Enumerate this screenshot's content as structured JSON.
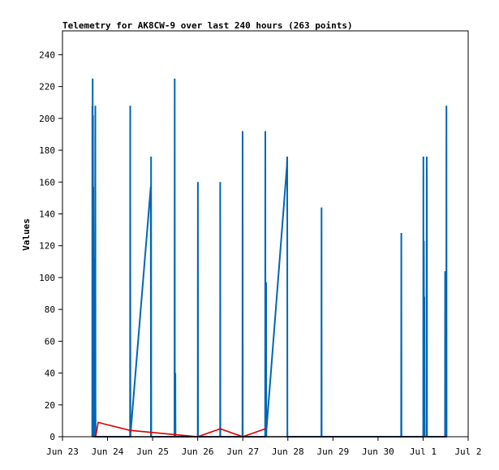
{
  "chart_data": {
    "type": "line",
    "title": "Telemetry for AK8CW-9 over last 240 hours (263 points)",
    "ylabel": "Values",
    "xlabel": "",
    "xlim": [
      "2025-06-23T00:00",
      "2025-07-02T00:00"
    ],
    "ylim": [
      0,
      255
    ],
    "yticks": [
      0,
      20,
      40,
      60,
      80,
      100,
      120,
      140,
      160,
      180,
      200,
      220,
      240
    ],
    "x_tick_labels": [
      "Jun 23",
      "Jun 24",
      "Jun 25",
      "Jun 26",
      "Jun 27",
      "Jun 28",
      "Jun 29",
      "Jun 30",
      "Jul 1",
      "Jul 2"
    ],
    "grid": false,
    "series": [
      {
        "color": "#0066b3",
        "points": [
          [
            "2025-06-23T15:50",
            0
          ],
          [
            "2025-06-23T15:55",
            208
          ],
          [
            "2025-06-23T16:00",
            0
          ],
          [
            "2025-06-23T16:05",
            225
          ],
          [
            "2025-06-23T16:10",
            0
          ],
          [
            "2025-06-23T16:15",
            202
          ],
          [
            "2025-06-23T16:20",
            0
          ],
          [
            "2025-06-23T16:25",
            157
          ],
          [
            "2025-06-23T16:30",
            0
          ],
          [
            "2025-06-23T16:50",
            112
          ],
          [
            "2025-06-23T16:55",
            0
          ],
          [
            "2025-06-23T17:05",
            68
          ],
          [
            "2025-06-23T17:10",
            0
          ],
          [
            "2025-06-23T17:30",
            208
          ],
          [
            "2025-06-23T17:35",
            22
          ],
          [
            "2025-06-23T17:40",
            0
          ],
          [
            "2025-06-24T12:00",
            0
          ],
          [
            "2025-06-24T12:05",
            208
          ],
          [
            "2025-06-24T12:10",
            0
          ],
          [
            "2025-06-24T12:15",
            2
          ],
          [
            "2025-06-24T23:00",
            157
          ],
          [
            "2025-06-24T23:05",
            0
          ],
          [
            "2025-06-24T23:10",
            176
          ],
          [
            "2025-06-24T23:15",
            0
          ],
          [
            "2025-06-25T11:40",
            0
          ],
          [
            "2025-06-25T11:45",
            225
          ],
          [
            "2025-06-25T11:50",
            0
          ],
          [
            "2025-06-25T12:05",
            40
          ],
          [
            "2025-06-25T12:10",
            0
          ],
          [
            "2025-06-26T00:00",
            0
          ],
          [
            "2025-06-26T00:05",
            160
          ],
          [
            "2025-06-26T00:10",
            0
          ],
          [
            "2025-06-26T11:55",
            0
          ],
          [
            "2025-06-26T12:00",
            160
          ],
          [
            "2025-06-26T12:05",
            0
          ],
          [
            "2025-06-26T23:50",
            0
          ],
          [
            "2025-06-26T23:55",
            192
          ],
          [
            "2025-06-27T00:00",
            0
          ],
          [
            "2025-06-27T11:55",
            0
          ],
          [
            "2025-06-27T12:00",
            192
          ],
          [
            "2025-06-27T12:05",
            0
          ],
          [
            "2025-06-27T12:25",
            97
          ],
          [
            "2025-06-27T12:30",
            0
          ],
          [
            "2025-06-27T12:40",
            5
          ],
          [
            "2025-06-27T23:30",
            170
          ],
          [
            "2025-06-27T23:40",
            176
          ],
          [
            "2025-06-27T23:45",
            0
          ],
          [
            "2025-06-28T17:50",
            0
          ],
          [
            "2025-06-28T17:55",
            144
          ],
          [
            "2025-06-28T18:00",
            0
          ],
          [
            "2025-06-30T12:20",
            0
          ],
          [
            "2025-06-30T12:25",
            128
          ],
          [
            "2025-06-30T12:30",
            0
          ],
          [
            "2025-07-01T00:05",
            0
          ],
          [
            "2025-07-01T00:10",
            176
          ],
          [
            "2025-07-01T00:15",
            20
          ],
          [
            "2025-07-01T00:25",
            123
          ],
          [
            "2025-07-01T00:30",
            52
          ],
          [
            "2025-07-01T00:40",
            88
          ],
          [
            "2025-07-01T00:45",
            0
          ],
          [
            "2025-07-01T01:50",
            0
          ],
          [
            "2025-07-01T01:55",
            176
          ],
          [
            "2025-07-01T02:00",
            158
          ],
          [
            "2025-07-01T02:05",
            0
          ],
          [
            "2025-07-01T11:40",
            0
          ],
          [
            "2025-07-01T11:45",
            104
          ],
          [
            "2025-07-01T11:50",
            0
          ],
          [
            "2025-07-01T12:20",
            0
          ],
          [
            "2025-07-01T12:25",
            208
          ],
          [
            "2025-07-01T12:30",
            0
          ]
        ]
      },
      {
        "color": "#dd0000",
        "points": [
          [
            "2025-06-23T17:40",
            0
          ],
          [
            "2025-06-23T19:00",
            9
          ],
          [
            "2025-06-24T12:00",
            4
          ],
          [
            "2025-06-26T00:00",
            0
          ],
          [
            "2025-06-26T12:00",
            5
          ],
          [
            "2025-06-26T24:00",
            0
          ],
          [
            "2025-06-27T12:00",
            5
          ]
        ]
      },
      {
        "color": "#000000",
        "points": [
          [
            "2025-06-23T15:50",
            0
          ],
          [
            "2025-07-01T12:30",
            0
          ]
        ]
      }
    ]
  }
}
